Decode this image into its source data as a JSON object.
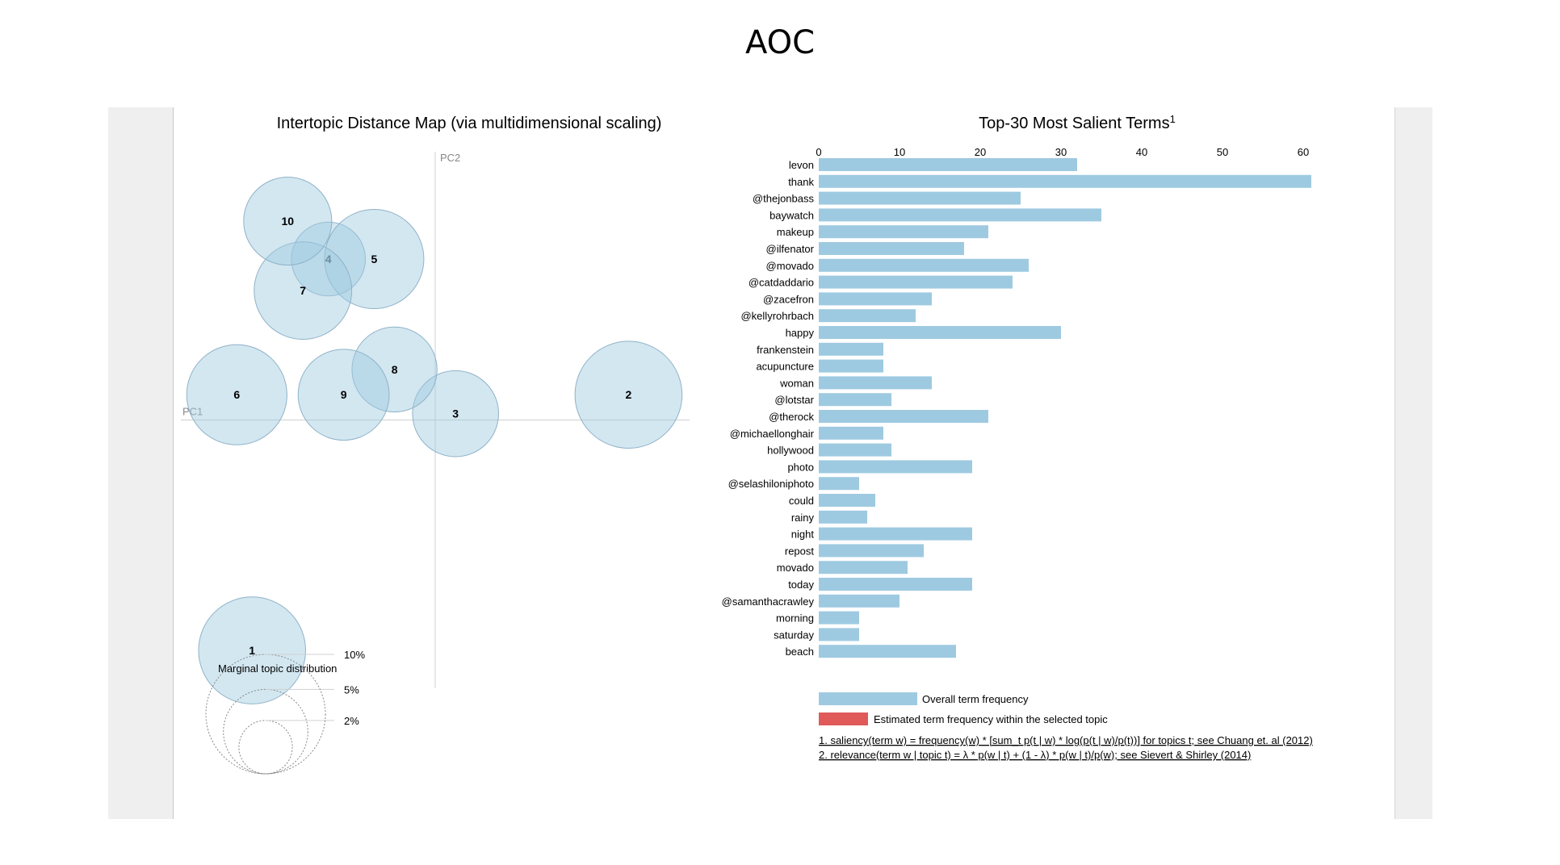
{
  "page_title": "AOC",
  "colors": {
    "bubble_fill": "#9ecae1",
    "bubble_stroke": "#8fb2c8",
    "overall_bar": "#9ecae1",
    "topic_bar": "#e05a5a",
    "axis_line": "#d0d0d0"
  },
  "chart_data": [
    {
      "type": "scatter",
      "title": "Intertopic Distance Map (via multidimensional scaling)",
      "xlabel": "PC1",
      "ylabel": "PC2",
      "note": "Bubble size encodes marginal topic distribution",
      "topics": [
        {
          "label": "1",
          "pc1": -0.36,
          "pc2": -0.73,
          "size_pct": 6.5
        },
        {
          "label": "2",
          "pc1": 0.38,
          "pc2": 0.08,
          "size_pct": 6.5
        },
        {
          "label": "3",
          "pc1": 0.04,
          "pc2": 0.02,
          "size_pct": 4.2
        },
        {
          "label": "4",
          "pc1": -0.21,
          "pc2": 0.51,
          "size_pct": 3.1
        },
        {
          "label": "5",
          "pc1": -0.12,
          "pc2": 0.51,
          "size_pct": 5.6
        },
        {
          "label": "6",
          "pc1": -0.39,
          "pc2": 0.08,
          "size_pct": 5.7
        },
        {
          "label": "7",
          "pc1": -0.26,
          "pc2": 0.41,
          "size_pct": 5.4
        },
        {
          "label": "8",
          "pc1": -0.08,
          "pc2": 0.16,
          "size_pct": 4.1
        },
        {
          "label": "9",
          "pc1": -0.18,
          "pc2": 0.08,
          "size_pct": 4.7
        },
        {
          "label": "10",
          "pc1": -0.29,
          "pc2": 0.63,
          "size_pct": 4.4
        }
      ],
      "xlim": [
        -0.5,
        0.5
      ],
      "ylim": [
        -0.85,
        0.85
      ],
      "size_legend": {
        "title": "Marginal topic distribution",
        "entries": [
          {
            "label": "2%",
            "pct": 2
          },
          {
            "label": "5%",
            "pct": 5
          },
          {
            "label": "10%",
            "pct": 10
          }
        ]
      }
    },
    {
      "type": "bar",
      "orientation": "horizontal",
      "title": "Top-30 Most Salient Terms",
      "title_superscript": "1",
      "xlim": [
        0,
        60
      ],
      "ticks": [
        0,
        10,
        20,
        30,
        40,
        50,
        60
      ],
      "categories": [
        "levon",
        "thank",
        "@thejonbass",
        "baywatch",
        "makeup",
        "@ilfenator",
        "@movado",
        "@catdaddario",
        "@zacefron",
        "@kellyrohrbach",
        "happy",
        "frankenstein",
        "acupuncture",
        "woman",
        "@lotstar",
        "@therock",
        "@michaellonghair",
        "hollywood",
        "photo",
        "@selashiloniphoto",
        "could",
        "rainy",
        "night",
        "repost",
        "movado",
        "today",
        "@samanthacrawley",
        "morning",
        "saturday",
        "beach"
      ],
      "series": [
        {
          "name": "Overall term frequency",
          "values": [
            32,
            61,
            25,
            35,
            21,
            18,
            26,
            24,
            14,
            12,
            30,
            8,
            8,
            14,
            9,
            21,
            8,
            9,
            19,
            5,
            7,
            6,
            19,
            13,
            11,
            19,
            10,
            5,
            5,
            17
          ]
        }
      ],
      "legend": {
        "overall": "Overall term frequency",
        "topic": "Estimated term frequency within the selected topic"
      },
      "footnotes": [
        "1. saliency(term w) = frequency(w) * [sum_t p(t | w) * log(p(t | w)/p(t))] for topics t; see Chuang et. al (2012)",
        "2. relevance(term w | topic t) = λ * p(w | t) + (1 - λ) * p(w | t)/p(w); see Sievert & Shirley (2014)"
      ]
    }
  ]
}
